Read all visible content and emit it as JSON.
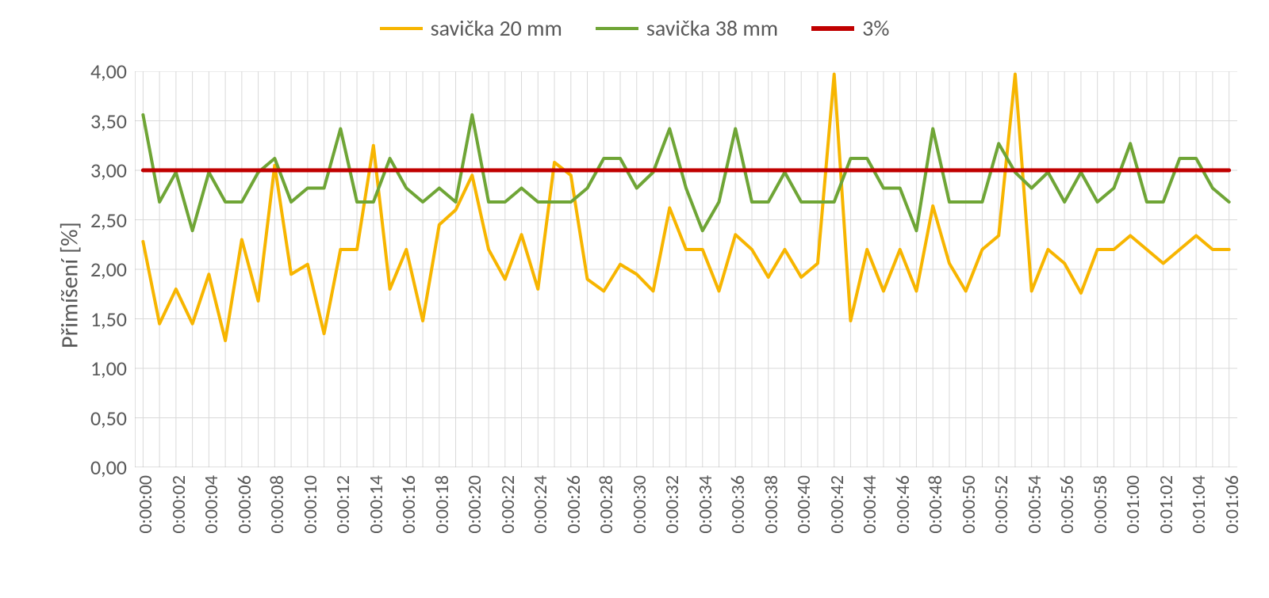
{
  "legend": {
    "series1": "savička 20 mm",
    "series2": "savička 38 mm",
    "series3": "3%"
  },
  "ylabel": "Přimíšení [%]",
  "chart": {
    "type": "line",
    "background_color": "#ffffff",
    "grid_color": "#d9d9d9",
    "axis_color": "#bfbfbf",
    "label_color": "#595959",
    "label_fontsize": 26,
    "legend_fontsize": 28,
    "ylim": [
      0,
      4
    ],
    "ytick_step": 0.5,
    "ytick_labels": [
      "0,00",
      "0,50",
      "1,00",
      "1,50",
      "2,00",
      "2,50",
      "3,00",
      "3,50",
      "4,00"
    ],
    "x_categories": [
      "0:00:00",
      "0:00:01",
      "0:00:02",
      "0:00:03",
      "0:00:04",
      "0:00:05",
      "0:00:06",
      "0:00:07",
      "0:00:08",
      "0:00:09",
      "0:00:10",
      "0:00:11",
      "0:00:12",
      "0:00:13",
      "0:00:14",
      "0:00:15",
      "0:00:16",
      "0:00:17",
      "0:00:18",
      "0:00:19",
      "0:00:20",
      "0:00:21",
      "0:00:22",
      "0:00:23",
      "0:00:24",
      "0:00:25",
      "0:00:26",
      "0:00:27",
      "0:00:28",
      "0:00:29",
      "0:00:30",
      "0:00:31",
      "0:00:32",
      "0:00:33",
      "0:00:34",
      "0:00:35",
      "0:00:36",
      "0:00:37",
      "0:00:38",
      "0:00:39",
      "0:00:40",
      "0:00:41",
      "0:00:42",
      "0:00:43",
      "0:00:44",
      "0:00:45",
      "0:00:46",
      "0:00:47",
      "0:00:48",
      "0:00:49",
      "0:00:50",
      "0:00:51",
      "0:00:52",
      "0:00:53",
      "0:00:54",
      "0:00:55",
      "0:00:56",
      "0:00:57",
      "0:00:58",
      "0:00:59",
      "0:01:00",
      "0:01:01",
      "0:01:02",
      "0:01:03",
      "0:01:04",
      "0:01:05",
      "0:01:06"
    ],
    "x_tick_every": 2,
    "series": [
      {
        "name": "savička 20 mm",
        "color": "#f7b500",
        "line_width": 4,
        "values": [
          2.28,
          1.45,
          1.8,
          1.45,
          1.95,
          1.28,
          2.3,
          1.68,
          3.05,
          1.95,
          2.05,
          1.35,
          2.2,
          2.2,
          3.25,
          1.8,
          2.2,
          1.48,
          2.45,
          2.6,
          2.95,
          2.2,
          1.9,
          2.35,
          1.8,
          3.08,
          2.95,
          1.9,
          1.78,
          2.05,
          1.95,
          1.78,
          2.62,
          2.2,
          2.2,
          1.78,
          2.35,
          2.2,
          1.92,
          2.2,
          1.92,
          2.06,
          3.97,
          1.48,
          2.2,
          1.78,
          2.2,
          1.78,
          2.64,
          2.06,
          1.78,
          2.2,
          2.34,
          3.97,
          1.78,
          2.2,
          2.06,
          1.76,
          2.2,
          2.2,
          2.34,
          2.2,
          2.06,
          2.2,
          2.34,
          2.2,
          2.2
        ]
      },
      {
        "name": "savička 38 mm",
        "color": "#6fa536",
        "line_width": 4,
        "values": [
          3.56,
          2.68,
          2.98,
          2.39,
          2.98,
          2.68,
          2.68,
          2.98,
          3.12,
          2.68,
          2.82,
          2.82,
          3.42,
          2.68,
          2.68,
          3.12,
          2.82,
          2.68,
          2.82,
          2.68,
          3.56,
          2.68,
          2.68,
          2.82,
          2.68,
          2.68,
          2.68,
          2.82,
          3.12,
          3.12,
          2.82,
          2.98,
          3.42,
          2.82,
          2.39,
          2.68,
          3.42,
          2.68,
          2.68,
          2.98,
          2.68,
          2.68,
          2.68,
          3.12,
          3.12,
          2.82,
          2.82,
          2.39,
          3.42,
          2.68,
          2.68,
          2.68,
          3.27,
          2.98,
          2.82,
          2.98,
          2.68,
          2.98,
          2.68,
          2.82,
          3.27,
          2.68,
          2.68,
          3.12,
          3.12,
          2.82,
          2.68
        ]
      },
      {
        "name": "3%",
        "color": "#c00000",
        "line_width": 5,
        "values": [
          3.0,
          3.0,
          3.0,
          3.0,
          3.0,
          3.0,
          3.0,
          3.0,
          3.0,
          3.0,
          3.0,
          3.0,
          3.0,
          3.0,
          3.0,
          3.0,
          3.0,
          3.0,
          3.0,
          3.0,
          3.0,
          3.0,
          3.0,
          3.0,
          3.0,
          3.0,
          3.0,
          3.0,
          3.0,
          3.0,
          3.0,
          3.0,
          3.0,
          3.0,
          3.0,
          3.0,
          3.0,
          3.0,
          3.0,
          3.0,
          3.0,
          3.0,
          3.0,
          3.0,
          3.0,
          3.0,
          3.0,
          3.0,
          3.0,
          3.0,
          3.0,
          3.0,
          3.0,
          3.0,
          3.0,
          3.0,
          3.0,
          3.0,
          3.0,
          3.0,
          3.0,
          3.0,
          3.0,
          3.0,
          3.0,
          3.0,
          3.0
        ]
      }
    ]
  }
}
